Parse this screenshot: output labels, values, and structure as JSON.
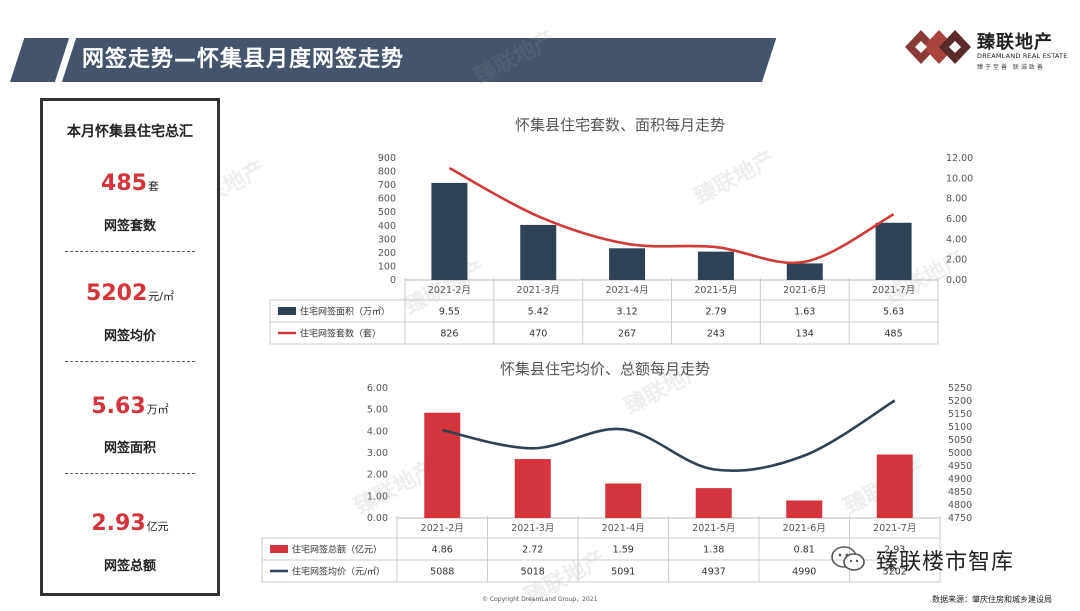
{
  "header": {
    "title": "网签走势—怀集县月度网签走势"
  },
  "logo": {
    "name": "臻联地产",
    "english": "DREAMLAND REAL ESTATE",
    "slogan": "臻于至善 联诚致善"
  },
  "summary": {
    "title": "本月怀集县住宅总汇",
    "stats": [
      {
        "value": "485",
        "unit": "套",
        "label": "网签套数"
      },
      {
        "value": "5202",
        "unit": "元/㎡",
        "label": "网签均价"
      },
      {
        "value": "5.63",
        "unit": "万㎡",
        "label": "网签面积"
      },
      {
        "value": "2.93",
        "unit": "亿元",
        "label": "网签总额"
      }
    ]
  },
  "watermark": "臻联地产",
  "colors": {
    "banner": "#44546a",
    "bar_dark": "#2f4154",
    "bar_red": "#d4343b",
    "line_red": "#d23a3a",
    "line_dark": "#2f4154",
    "value_red": "#d4343b"
  },
  "chart_data": [
    {
      "type": "bar",
      "title": "怀集县住宅套数、面积每月走势",
      "categories": [
        "2021-2月",
        "2021-3月",
        "2021-4月",
        "2021-5月",
        "2021-6月",
        "2021-7月"
      ],
      "y_ticks_left": [
        "900",
        "800",
        "700",
        "600",
        "500",
        "400",
        "300",
        "200",
        "100",
        "0"
      ],
      "y_ticks_right": [
        "12.00",
        "10.00",
        "8.00",
        "6.00",
        "4.00",
        "2.00",
        "0.00"
      ],
      "ylim_left": [
        0,
        900
      ],
      "ylim_right": [
        0,
        12
      ],
      "series": [
        {
          "name": "住宅网签面积（万㎡）",
          "kind": "bar",
          "axis": "right",
          "values": [
            9.55,
            5.42,
            3.12,
            2.79,
            1.63,
            5.63
          ],
          "labels": [
            "9.55",
            "5.42",
            "3.12",
            "2.79",
            "1.63",
            "5.63"
          ]
        },
        {
          "name": "住宅网签套数（套）",
          "kind": "line",
          "axis": "left",
          "values": [
            826,
            470,
            267,
            243,
            134,
            485
          ],
          "labels": [
            "826",
            "470",
            "267",
            "243",
            "134",
            "485"
          ]
        }
      ]
    },
    {
      "type": "bar",
      "title": "怀集县住宅均价、总额每月走势",
      "categories": [
        "2021-2月",
        "2021-3月",
        "2021-4月",
        "2021-5月",
        "2021-6月",
        "2021-7月"
      ],
      "y_ticks_left": [
        "6.00",
        "5.00",
        "4.00",
        "3.00",
        "2.00",
        "1.00",
        "0.00"
      ],
      "y_ticks_right": [
        "5250",
        "5200",
        "5150",
        "5100",
        "5050",
        "5000",
        "4950",
        "4900",
        "4850",
        "4800",
        "4750"
      ],
      "ylim_left": [
        0,
        6
      ],
      "ylim_right": [
        4750,
        5250
      ],
      "series": [
        {
          "name": "住宅网签总额（亿元）",
          "kind": "bar",
          "axis": "left",
          "values": [
            4.86,
            2.72,
            1.59,
            1.38,
            0.81,
            2.93
          ],
          "labels": [
            "4.86",
            "2.72",
            "1.59",
            "1.38",
            "0.81",
            "2.93"
          ]
        },
        {
          "name": "住宅网签均价（元/㎡）",
          "kind": "line",
          "axis": "right",
          "values": [
            5088,
            5018,
            5091,
            4937,
            4990,
            5202
          ],
          "labels": [
            "5088",
            "5018",
            "5091",
            "4937",
            "4990",
            "5202"
          ]
        }
      ]
    }
  ],
  "footer": {
    "copyright": "© Copyright  DreamLand Group，2021",
    "source": "数据来源：肇庆住房和城乡建设局",
    "wechat": "臻联楼市智库"
  }
}
